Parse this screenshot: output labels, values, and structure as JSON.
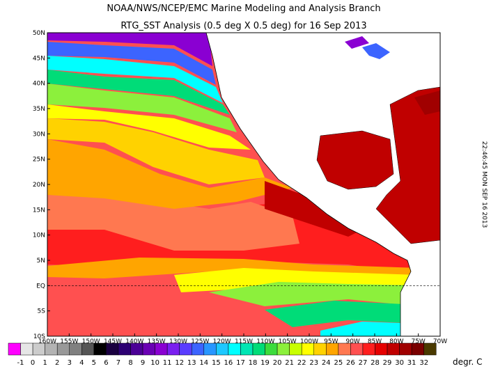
{
  "header": {
    "title": "NOAA/NWS/NCEP/EMC Marine Modeling and Analysis Branch",
    "subtitle": "RTG_SST Analysis (0.5 deg X 0.5 deg) for 16 Sep 2013"
  },
  "timestamp": "22:46:45  MON SEP 16 2013",
  "map": {
    "lat_labels": [
      "50N",
      "45N",
      "40N",
      "35N",
      "30N",
      "25N",
      "20N",
      "15N",
      "10N",
      "5N",
      "EQ",
      "5S",
      "10S"
    ],
    "lon_labels": [
      "160W",
      "155W",
      "150W",
      "145W",
      "140W",
      "135W",
      "130W",
      "125W",
      "120W",
      "115W",
      "110W",
      "105W",
      "100W",
      "95W",
      "90W",
      "85W",
      "80W",
      "75W",
      "70W"
    ]
  },
  "colorbar": {
    "ticks": [
      -1,
      0,
      1,
      2,
      3,
      4,
      5,
      6,
      7,
      8,
      9,
      10,
      11,
      12,
      13,
      14,
      15,
      16,
      17,
      18,
      19,
      20,
      21,
      22,
      23,
      24,
      25,
      26,
      27,
      28,
      29,
      30,
      31,
      32
    ],
    "colors": [
      "#ff00ff",
      "#e6e6e6",
      "#cccccc",
      "#b3b3b3",
      "#999999",
      "#808080",
      "#555555",
      "#000000",
      "#1a0040",
      "#2d0073",
      "#4b0096",
      "#6a00b4",
      "#8a00d2",
      "#7a1ff0",
      "#5a3cff",
      "#3c64ff",
      "#2896ff",
      "#1ec8ff",
      "#00ffff",
      "#00e6b4",
      "#00dc78",
      "#3cdc3c",
      "#8cf03c",
      "#c8ff00",
      "#ffff00",
      "#ffd200",
      "#ffa500",
      "#ff7850",
      "#ff5050",
      "#ff1e1e",
      "#e60000",
      "#c00000",
      "#a00000",
      "#7a0000",
      "#4a3a00"
    ],
    "unit": "degr. C"
  }
}
